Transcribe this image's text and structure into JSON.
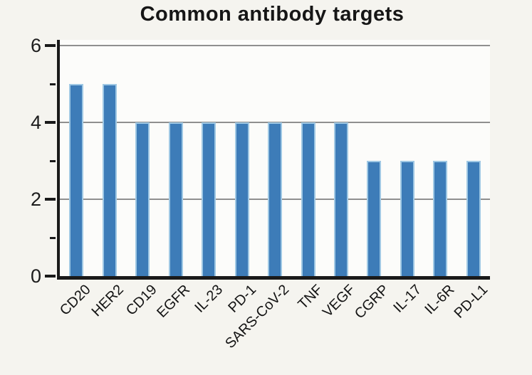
{
  "chart_data": {
    "type": "bar",
    "title": "Common antibody targets",
    "xlabel": "",
    "ylabel": "",
    "categories": [
      "CD20",
      "HER2",
      "CD19",
      "EGFR",
      "IL-23",
      "PD-1",
      "SARS-CoV-2",
      "TNF",
      "VEGF",
      "CGRP",
      "IL-17",
      "IL-6R",
      "PD-L1"
    ],
    "values": [
      5,
      5,
      4,
      4,
      4,
      4,
      4,
      4,
      4,
      3,
      3,
      3,
      3
    ],
    "ylim": [
      0,
      6.15
    ],
    "yticks_major": [
      0,
      2,
      4,
      6
    ],
    "yticks_minor": [
      1,
      3,
      5
    ],
    "gridline_values": [
      2,
      4,
      6
    ],
    "grid": "horizontal",
    "legend": false,
    "xtick_rotation_deg": 45,
    "colors": {
      "bar_fill": "#3d7cb8",
      "bar_edge": "#9fc8e4",
      "axis": "#1a1a1a",
      "grid": "#8f8f8f",
      "plot_background": "#fcfcfa",
      "figure_background": "#f5f4ef",
      "text": "#161616"
    }
  }
}
